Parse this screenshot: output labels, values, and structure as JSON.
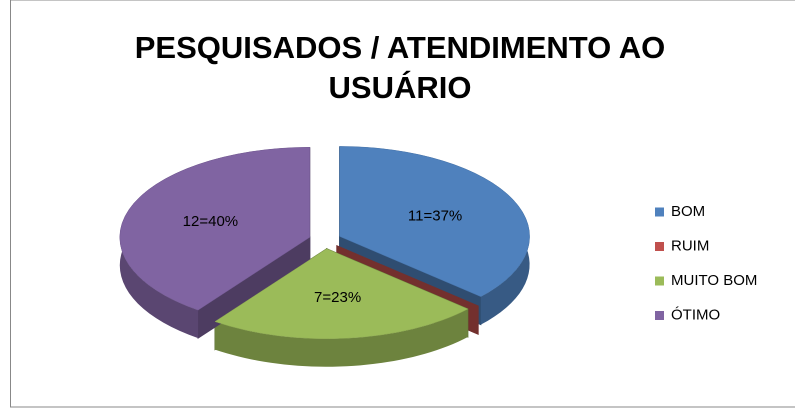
{
  "chart_data": {
    "type": "pie3d",
    "title": "PESQUISADOS / ATENDIMENTO AO USUÁRIO",
    "categories": [
      "BOM",
      "RUIM",
      "MUITO BOM",
      "ÓTIMO"
    ],
    "values": [
      11,
      0,
      7,
      12
    ],
    "value_labels": [
      "11=37%",
      null,
      "7=23%",
      "12=40%"
    ],
    "colors": [
      "#4f81bd",
      "#c0504d",
      "#9bbb59",
      "#8064a2"
    ],
    "legend": "right"
  }
}
